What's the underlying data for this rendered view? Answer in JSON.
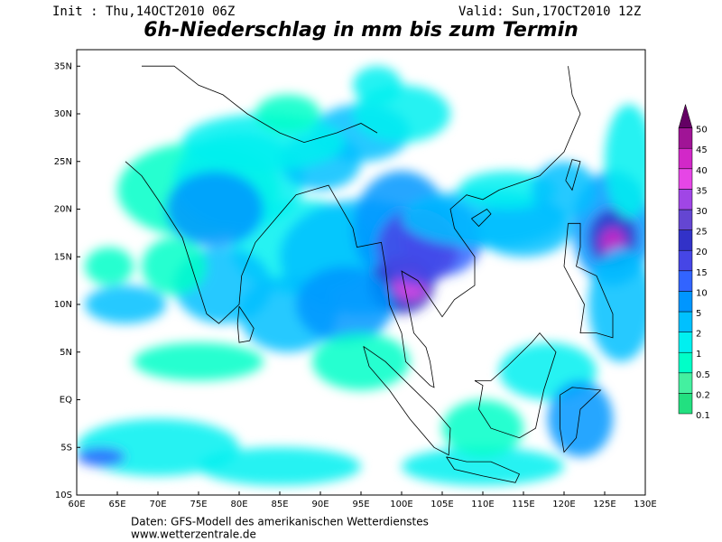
{
  "header": {
    "init": "Init : Thu,14OCT2010 06Z",
    "valid": "Valid: Sun,17OCT2010 12Z",
    "title": "6h-Niederschlag in mm bis zum Termin"
  },
  "map": {
    "lon_labels": [
      "60E",
      "65E",
      "70E",
      "75E",
      "80E",
      "85E",
      "90E",
      "95E",
      "100E",
      "105E",
      "110E",
      "115E",
      "120E",
      "125E",
      "130E"
    ],
    "lat_labels": [
      "10S",
      "5S",
      "EQ",
      "5N",
      "10N",
      "15N",
      "20N",
      "25N",
      "30N",
      "35N"
    ]
  },
  "colorbar": {
    "levels": [
      0.1,
      0.2,
      0.5,
      1,
      2,
      5,
      10,
      15,
      20,
      25,
      30,
      35,
      40,
      45,
      50
    ],
    "colors": [
      "#22e080",
      "#44f0a0",
      "#00ffc8",
      "#00f0f0",
      "#00c0ff",
      "#0096ff",
      "#3264ff",
      "#4646e6",
      "#3232c8",
      "#6446d2",
      "#a046e6",
      "#e646e6",
      "#d228c8",
      "#a01496",
      "#640064"
    ]
  },
  "footer": {
    "source": "Daten: GFS-Modell des amerikanischen Wetterdienstes",
    "url": "www.wetterzentrale.de"
  }
}
